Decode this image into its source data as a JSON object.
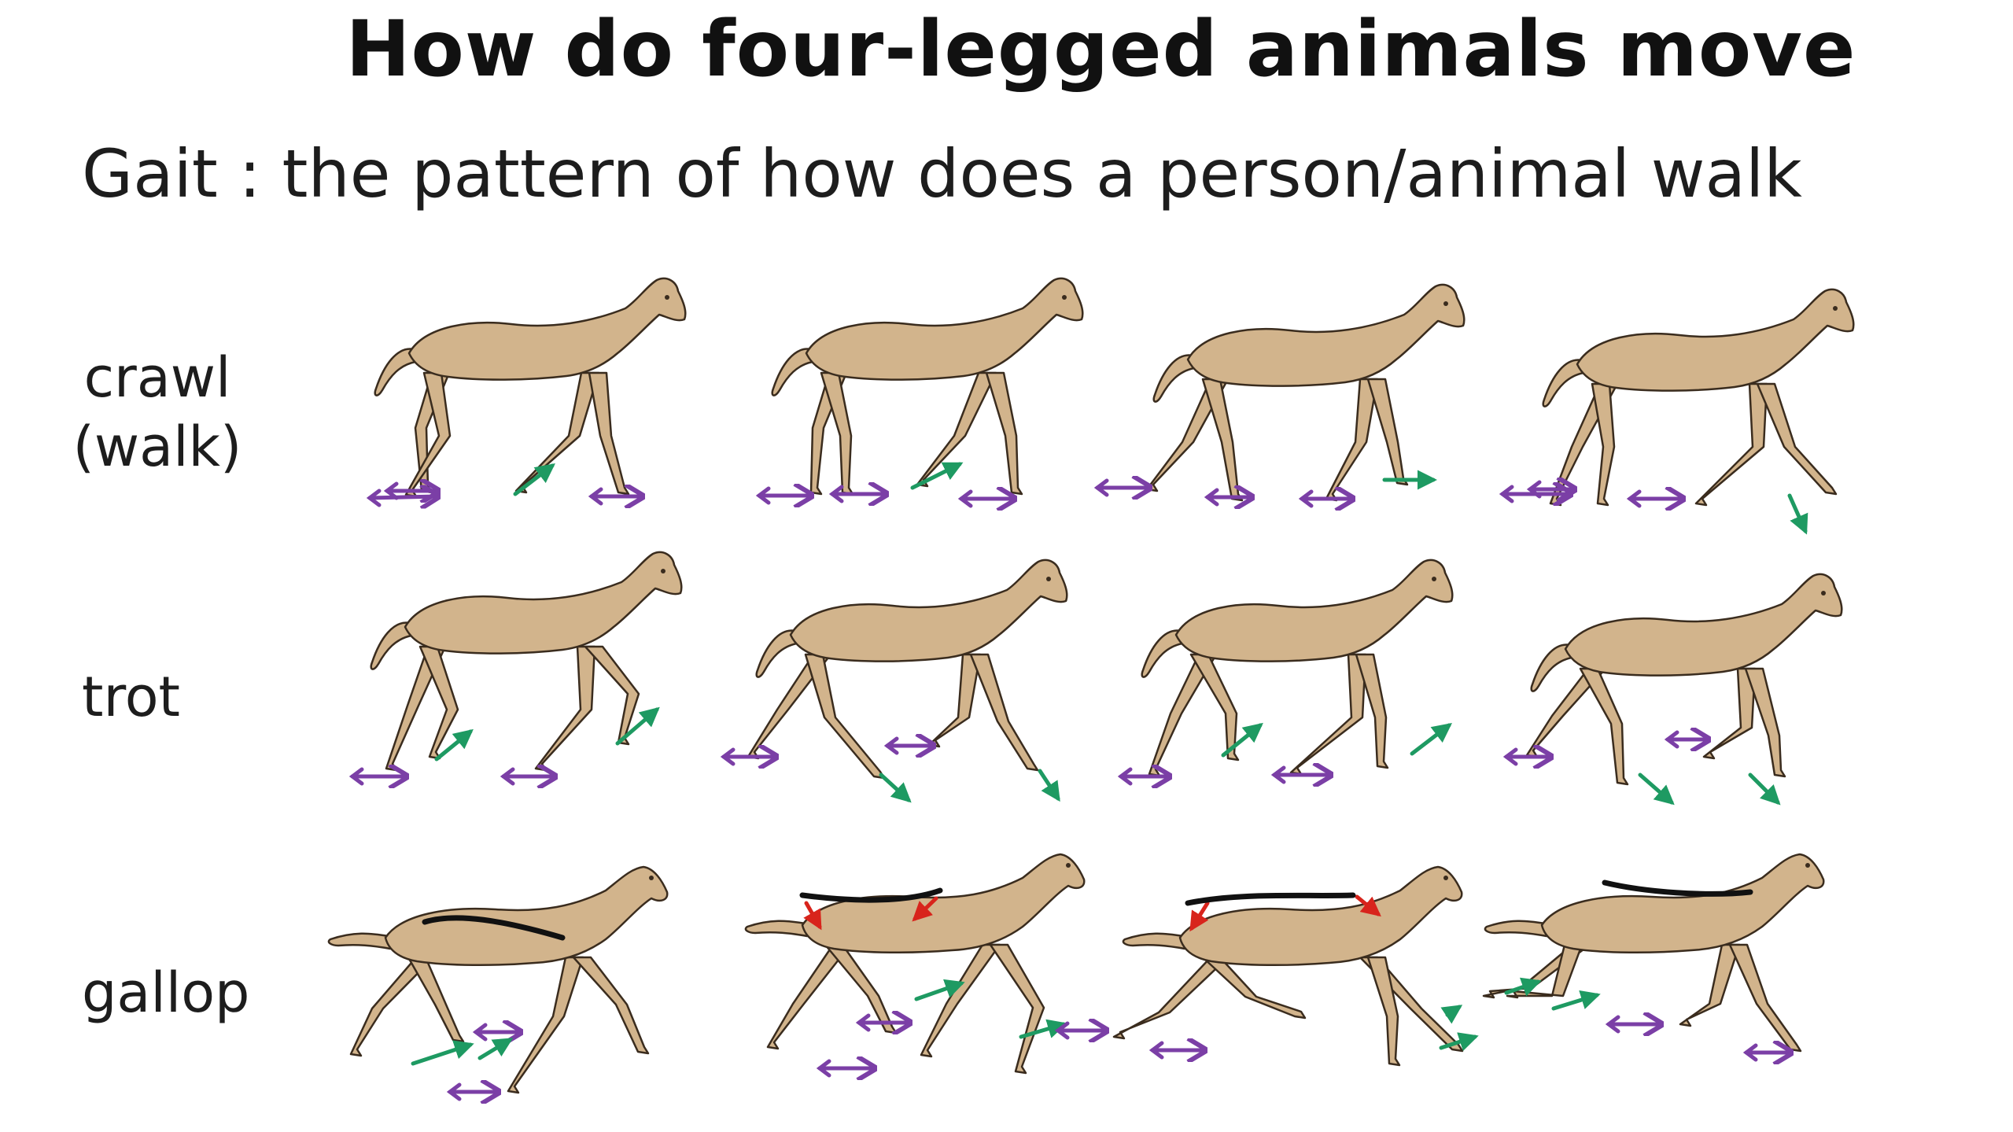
{
  "title": "How do four-legged animals move",
  "subtitle": "Gait : the pattern of how does a person/animal walk",
  "rows": [
    {
      "label_lines": [
        "crawl",
        "(walk)"
      ]
    },
    {
      "label_lines": [
        "trot"
      ]
    },
    {
      "label_lines": [
        "gallop"
      ]
    }
  ],
  "colors": {
    "horse_fill": "#d2b48c",
    "horse_outline": "#3a2c1e",
    "stance_arrow": "#7b3fa6",
    "swing_arrow": "#1e9a62",
    "spine_arrow": "#d8241c",
    "spine_line": "#111111"
  },
  "legend_semantics": {
    "purple_arrow": "stance-foot-arrow",
    "green_arrow": "swing-foot-arrow",
    "red_arrow": "spine-flex-arrow",
    "black_curve": "spine-line"
  }
}
